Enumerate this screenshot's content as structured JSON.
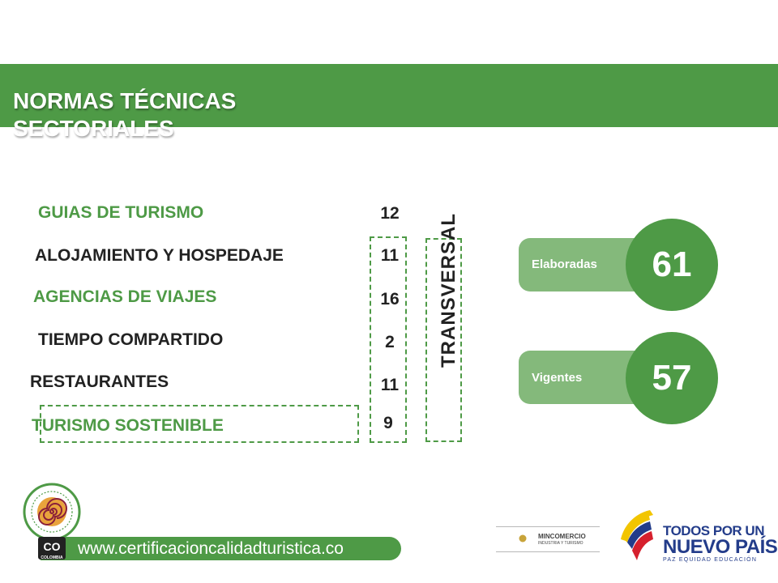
{
  "title": {
    "line1": "NORMAS TÉCNICAS",
    "line2": "SECTORIALES"
  },
  "sectors": [
    {
      "name": "GUIAS DE TURISMO",
      "count": "12"
    },
    {
      "name": "ALOJAMIENTO Y HOSPEDAJE",
      "count": "11"
    },
    {
      "name": "AGENCIAS DE VIAJES",
      "count": "16"
    },
    {
      "name": "TIEMPO COMPARTIDO",
      "count": "2"
    },
    {
      "name": "RESTAURANTES",
      "count": "11"
    },
    {
      "name": "TURISMO SOSTENIBLE",
      "count": "9"
    }
  ],
  "transversal_label": "TRANSVERSAL",
  "stats": [
    {
      "label": "Elaboradas",
      "value": "61"
    },
    {
      "label": "Vigentes",
      "value": "57"
    }
  ],
  "footer": {
    "url": "www.certificacioncalidadturistica.co",
    "co_badge": "CO",
    "co_caption": "COLOMBIA",
    "ministry": "MINCOMERCIO",
    "ministry_sub": "INDUSTRIA Y TURISMO",
    "slogan_line1": "TODOS POR UN",
    "slogan_line2": "NUEVO PAÍS",
    "slogan_line3": "PAZ  EQUIDAD  EDUCACIÓN"
  },
  "colors": {
    "brand_green": "#4e9a46",
    "light_green": "#84b97b",
    "slogan_blue": "#233c8a"
  }
}
